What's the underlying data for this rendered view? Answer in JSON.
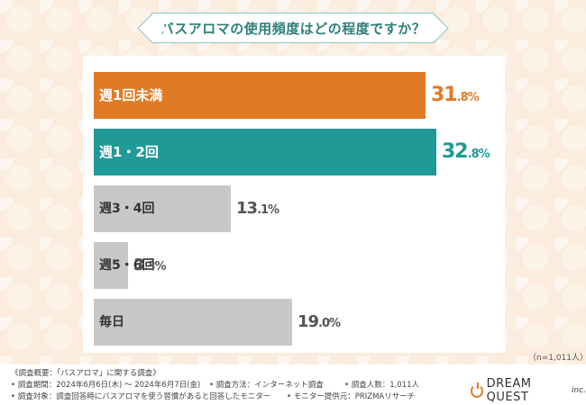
{
  "chart_data": {
    "type": "bar",
    "title": "バスアロマの使用頻度はどの程度ですか？",
    "categories": [
      "週1回未満",
      "週1・2回",
      "週3・4回",
      "週5・6回",
      "毎日"
    ],
    "values": [
      31.8,
      32.8,
      13.1,
      3.3,
      19.0
    ],
    "value_labels": [
      {
        "big": "31",
        "small": ".8%"
      },
      {
        "big": "32",
        "small": ".8%"
      },
      {
        "big": "13",
        "small": ".1%"
      },
      {
        "big": "3",
        "small": ".3%"
      },
      {
        "big": "19",
        "small": ".0%"
      }
    ],
    "colors": [
      "#e07b25",
      "#1f9a97",
      "#c8c8c8",
      "#c8c8c8",
      "#c8c8c8"
    ],
    "value_colors": [
      "#e07b25",
      "#1f9a97",
      "#555555",
      "#555555",
      "#555555"
    ],
    "xlim": [
      0,
      35
    ],
    "sample_size": "（n=1,011人）"
  },
  "footer": {
    "line1": "《調査概要：「バスアロマ」に関する調査》",
    "period": "• 調査期間：2024年6月6日(木) ～ 2024年6月7日(金)",
    "method": "• 調査方法：インターネット調査",
    "people": "• 調査人数：1,011人",
    "target": "• 調査対象：調査回答時にバスアロマを使う習慣があると回答したモニター",
    "provider": "• モニター提供元：PRIZMAリサーチ"
  },
  "logo": {
    "name": "DREAM QUEST",
    "suffix": "inc."
  }
}
